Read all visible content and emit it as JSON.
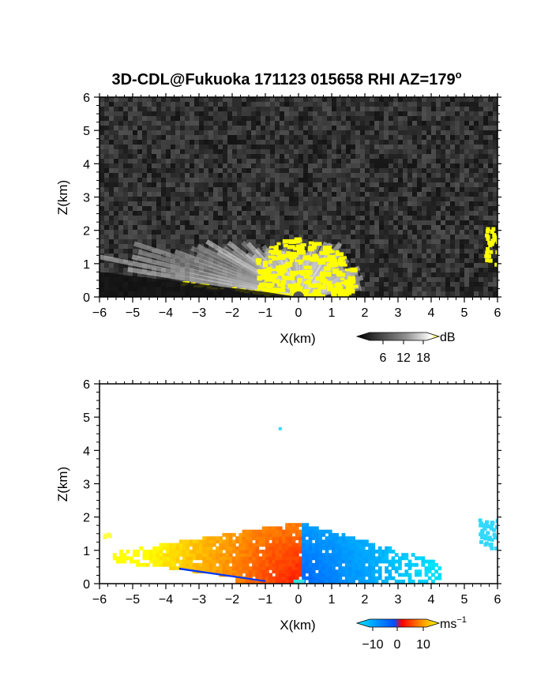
{
  "title": "3D-CDL@Fukuoka 171123 015658 RHI AZ=179",
  "title_superscript": "o",
  "chart_data": [
    {
      "type": "heatmap",
      "panel": "top",
      "xlabel": "X(km)",
      "ylabel": "Z(km)",
      "xlim": [
        -6,
        6
      ],
      "ylim": [
        0,
        6
      ],
      "xticks": [
        "-6",
        "-5",
        "-4",
        "-3",
        "-2",
        "-1",
        "0",
        "1",
        "2",
        "3",
        "4",
        "5",
        "6"
      ],
      "yticks": [
        "0",
        "1",
        "2",
        "3",
        "4",
        "5",
        "6"
      ],
      "background": "noise",
      "features": {
        "echo_fan_top_km": 1.6,
        "echo_fan_x_range_km": [
          -6,
          2.0
        ],
        "strong_echo_region_x_km": [
          -1.3,
          1.6
        ],
        "right_edge_echo_x_km": [
          5.6,
          6.0
        ],
        "right_edge_echo_z_km": [
          1.0,
          2.1
        ]
      },
      "colorbar": {
        "unit": "dB",
        "ticks": [
          "6",
          "12",
          "18"
        ],
        "range": [
          0,
          21
        ],
        "colors": [
          "#000000",
          "#ffffff",
          "#ffff00"
        ]
      }
    },
    {
      "type": "heatmap",
      "panel": "bottom",
      "xlabel": "X(km)",
      "ylabel": "Z(km)",
      "xlim": [
        -6,
        6
      ],
      "ylim": [
        0,
        6
      ],
      "xticks": [
        "-6",
        "-5",
        "-4",
        "-3",
        "-2",
        "-1",
        "0",
        "1",
        "2",
        "3",
        "4",
        "5",
        "6"
      ],
      "yticks": [
        "0",
        "1",
        "2",
        "3",
        "4",
        "5",
        "6"
      ],
      "features": {
        "negative_velocity_x_km": [
          0,
          4.0
        ],
        "positive_velocity_x_km": [
          -5.6,
          0
        ],
        "data_top_km": 1.8,
        "isolated_point_km": [
          -0.6,
          4.7
        ]
      },
      "colorbar": {
        "unit": "ms",
        "unit_superscript": "−1",
        "ticks": [
          "−10",
          "0",
          "10"
        ],
        "range": [
          -15,
          15
        ],
        "colors": [
          "#00e8ff",
          "#0050ff",
          "#ff0000",
          "#ffff00"
        ]
      }
    }
  ]
}
